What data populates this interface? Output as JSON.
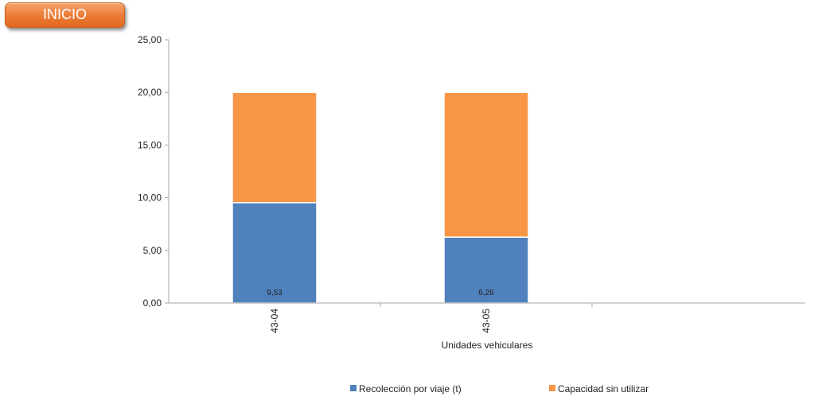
{
  "button": {
    "label": "INICIO"
  },
  "chart_data": {
    "type": "bar",
    "stacked": true,
    "categories": [
      "43-04",
      "43-05"
    ],
    "series": [
      {
        "name": "Recolección por viaje (t)",
        "values": [
          9.53,
          6.26
        ],
        "color": "#4f81bd",
        "data_labels": [
          "9,53",
          "6,26"
        ]
      },
      {
        "name": "Capacidad sin utilizar",
        "values": [
          10.47,
          13.74
        ],
        "color": "#f79646"
      }
    ],
    "y_ticks": [
      "0,00",
      "5,00",
      "10,00",
      "15,00",
      "20,00",
      "25,00"
    ],
    "ylim": [
      0,
      25
    ],
    "xlabel": "Unidades vehiculares",
    "ylabel": "",
    "title": "",
    "grid": false,
    "legend": "bottom"
  }
}
